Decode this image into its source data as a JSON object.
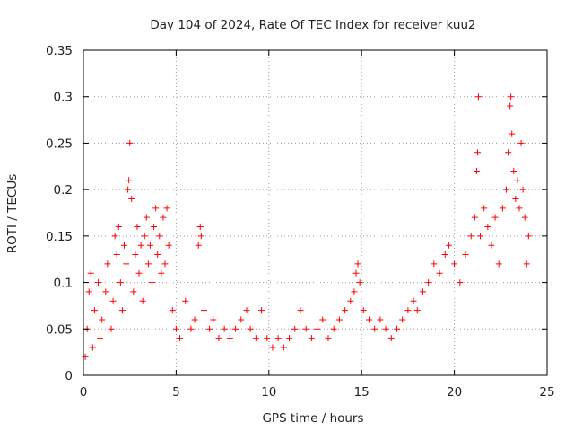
{
  "chart_data": {
    "type": "scatter",
    "title": "Day 104 of 2024, Rate Of TEC Index for receiver kuu2",
    "xlabel": "GPS time / hours",
    "ylabel": "ROTI / TECUs",
    "xlim": [
      0,
      25
    ],
    "ylim": [
      0,
      0.35
    ],
    "x_ticks": [
      "0",
      "5",
      "10",
      "15",
      "20",
      "25"
    ],
    "y_ticks": [
      "0",
      "0.05",
      "0.1",
      "0.15",
      "0.2",
      "0.25",
      "0.3",
      "0.35"
    ],
    "grid": true,
    "marker": "+",
    "color": "#ff0000",
    "series": [
      {
        "points": [
          [
            0.1,
            0.02
          ],
          [
            0.2,
            0.05
          ],
          [
            0.3,
            0.09
          ],
          [
            0.4,
            0.11
          ],
          [
            0.5,
            0.03
          ],
          [
            0.6,
            0.07
          ],
          [
            0.8,
            0.1
          ],
          [
            0.9,
            0.04
          ],
          [
            1.0,
            0.06
          ],
          [
            1.2,
            0.09
          ],
          [
            1.3,
            0.12
          ],
          [
            1.5,
            0.05
          ],
          [
            1.6,
            0.08
          ],
          [
            1.7,
            0.15
          ],
          [
            1.8,
            0.13
          ],
          [
            1.9,
            0.16
          ],
          [
            2.0,
            0.1
          ],
          [
            2.1,
            0.07
          ],
          [
            2.2,
            0.14
          ],
          [
            2.3,
            0.12
          ],
          [
            2.4,
            0.2
          ],
          [
            2.45,
            0.21
          ],
          [
            2.5,
            0.25
          ],
          [
            2.6,
            0.19
          ],
          [
            2.7,
            0.09
          ],
          [
            2.8,
            0.13
          ],
          [
            2.9,
            0.16
          ],
          [
            3.0,
            0.11
          ],
          [
            3.1,
            0.14
          ],
          [
            3.2,
            0.08
          ],
          [
            3.3,
            0.15
          ],
          [
            3.4,
            0.17
          ],
          [
            3.5,
            0.12
          ],
          [
            3.6,
            0.14
          ],
          [
            3.7,
            0.1
          ],
          [
            3.8,
            0.16
          ],
          [
            3.9,
            0.18
          ],
          [
            4.0,
            0.13
          ],
          [
            4.1,
            0.15
          ],
          [
            4.2,
            0.11
          ],
          [
            4.3,
            0.17
          ],
          [
            4.4,
            0.12
          ],
          [
            4.5,
            0.18
          ],
          [
            4.6,
            0.14
          ],
          [
            4.8,
            0.07
          ],
          [
            5.0,
            0.05
          ],
          [
            5.2,
            0.04
          ],
          [
            5.5,
            0.08
          ],
          [
            5.8,
            0.05
          ],
          [
            6.0,
            0.06
          ],
          [
            6.2,
            0.14
          ],
          [
            6.3,
            0.16
          ],
          [
            6.35,
            0.15
          ],
          [
            6.5,
            0.07
          ],
          [
            6.8,
            0.05
          ],
          [
            7.0,
            0.06
          ],
          [
            7.3,
            0.04
          ],
          [
            7.6,
            0.05
          ],
          [
            7.9,
            0.04
          ],
          [
            8.2,
            0.05
          ],
          [
            8.5,
            0.06
          ],
          [
            8.8,
            0.07
          ],
          [
            9.0,
            0.05
          ],
          [
            9.3,
            0.04
          ],
          [
            9.6,
            0.07
          ],
          [
            9.9,
            0.04
          ],
          [
            10.2,
            0.03
          ],
          [
            10.5,
            0.04
          ],
          [
            10.8,
            0.03
          ],
          [
            11.1,
            0.04
          ],
          [
            11.4,
            0.05
          ],
          [
            11.7,
            0.07
          ],
          [
            12.0,
            0.05
          ],
          [
            12.3,
            0.04
          ],
          [
            12.6,
            0.05
          ],
          [
            12.9,
            0.06
          ],
          [
            13.2,
            0.04
          ],
          [
            13.5,
            0.05
          ],
          [
            13.8,
            0.06
          ],
          [
            14.1,
            0.07
          ],
          [
            14.4,
            0.08
          ],
          [
            14.6,
            0.09
          ],
          [
            14.7,
            0.11
          ],
          [
            14.8,
            0.12
          ],
          [
            14.9,
            0.1
          ],
          [
            15.1,
            0.07
          ],
          [
            15.4,
            0.06
          ],
          [
            15.7,
            0.05
          ],
          [
            16.0,
            0.06
          ],
          [
            16.3,
            0.05
          ],
          [
            16.6,
            0.04
          ],
          [
            16.9,
            0.05
          ],
          [
            17.2,
            0.06
          ],
          [
            17.5,
            0.07
          ],
          [
            17.8,
            0.08
          ],
          [
            18.0,
            0.07
          ],
          [
            18.3,
            0.09
          ],
          [
            18.6,
            0.1
          ],
          [
            18.9,
            0.12
          ],
          [
            19.2,
            0.11
          ],
          [
            19.5,
            0.13
          ],
          [
            19.7,
            0.14
          ],
          [
            20.0,
            0.12
          ],
          [
            20.3,
            0.1
          ],
          [
            20.6,
            0.13
          ],
          [
            20.9,
            0.15
          ],
          [
            21.1,
            0.17
          ],
          [
            21.2,
            0.22
          ],
          [
            21.25,
            0.24
          ],
          [
            21.3,
            0.3
          ],
          [
            21.4,
            0.15
          ],
          [
            21.6,
            0.18
          ],
          [
            21.8,
            0.16
          ],
          [
            22.0,
            0.14
          ],
          [
            22.2,
            0.17
          ],
          [
            22.4,
            0.12
          ],
          [
            22.6,
            0.18
          ],
          [
            22.8,
            0.2
          ],
          [
            22.9,
            0.24
          ],
          [
            23.0,
            0.29
          ],
          [
            23.05,
            0.3
          ],
          [
            23.1,
            0.26
          ],
          [
            23.2,
            0.22
          ],
          [
            23.3,
            0.19
          ],
          [
            23.4,
            0.21
          ],
          [
            23.5,
            0.18
          ],
          [
            23.6,
            0.25
          ],
          [
            23.7,
            0.2
          ],
          [
            23.8,
            0.17
          ],
          [
            23.9,
            0.12
          ],
          [
            24.0,
            0.15
          ]
        ]
      }
    ]
  }
}
